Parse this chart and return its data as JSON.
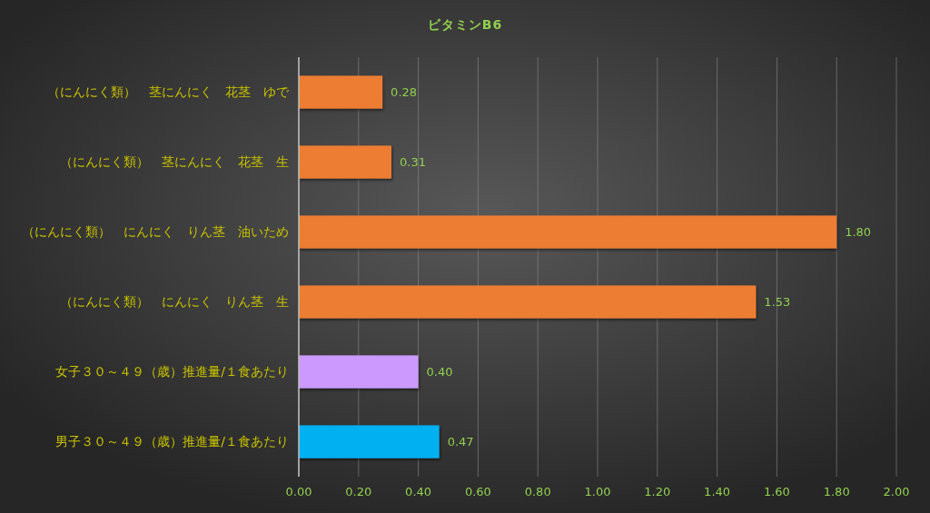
{
  "chart_data": {
    "type": "bar",
    "orientation": "horizontal",
    "title": "ビタミンB6",
    "categories": [
      "（にんにく類）　茎にんにく　花茎　ゆで",
      "（にんにく類）　茎にんにく　花茎　生",
      "（にんにく類）　にんにく　りん茎　油いため",
      "（にんにく類）　にんにく　りん茎　生",
      "女子３０～４９（歳）推進量/１食あたり",
      "男子３０～４９（歳）推進量/１食あたり"
    ],
    "values": [
      0.28,
      0.31,
      1.8,
      1.53,
      0.4,
      0.47
    ],
    "colors": [
      "#ed7d31",
      "#ed7d31",
      "#ed7d31",
      "#ed7d31",
      "#cc99ff",
      "#00b0f0"
    ],
    "value_labels": [
      "0.28",
      "0.31",
      "1.80",
      "1.53",
      "0.40",
      "0.47"
    ],
    "xlim": [
      0,
      2
    ],
    "xticks": [
      {
        "value": 0,
        "label": "0.00"
      },
      {
        "value": 0.2,
        "label": "0.20"
      },
      {
        "value": 0.4,
        "label": "0.40"
      },
      {
        "value": 0.6,
        "label": "0.60"
      },
      {
        "value": 0.8,
        "label": "0.80"
      },
      {
        "value": 1,
        "label": "1.00"
      },
      {
        "value": 1.2,
        "label": "1.20"
      },
      {
        "value": 1.4,
        "label": "1.40"
      },
      {
        "value": 1.6,
        "label": "1.60"
      },
      {
        "value": 1.8,
        "label": "1.80"
      },
      {
        "value": 2,
        "label": "2.00"
      }
    ],
    "grid": "x"
  }
}
